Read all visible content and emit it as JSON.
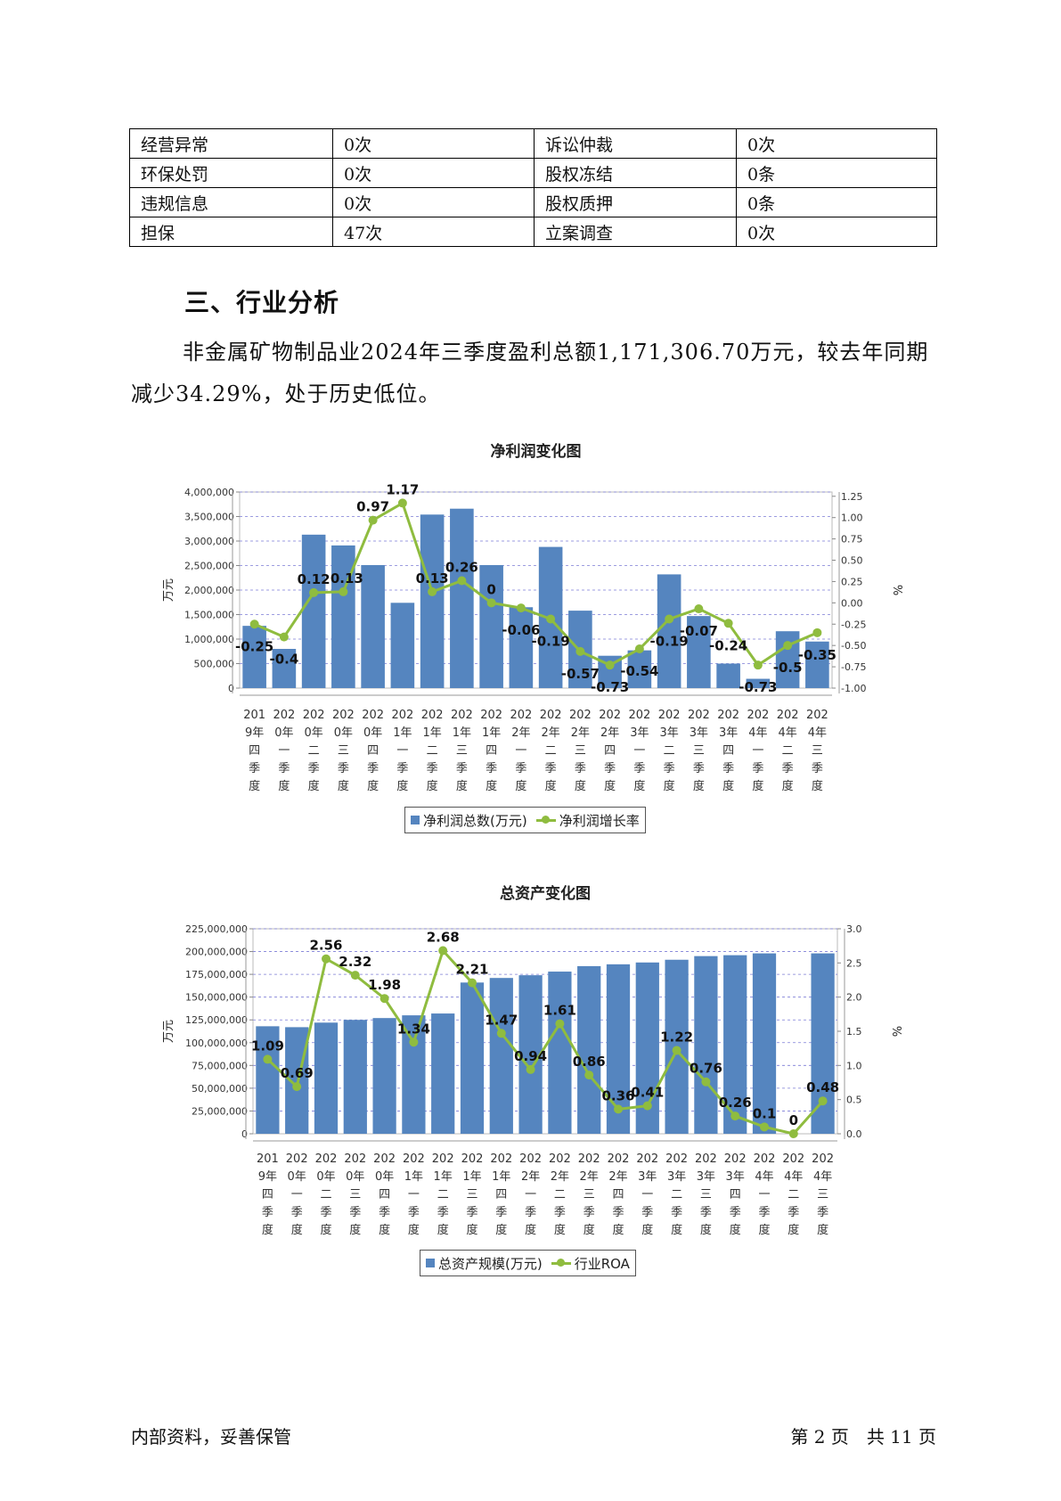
{
  "risk_table": [
    [
      "经营异常",
      "0次",
      "诉讼仲裁",
      "0次"
    ],
    [
      "环保处罚",
      "0次",
      "股权冻结",
      "0条"
    ],
    [
      "违规信息",
      "0次",
      "股权质押",
      "0条"
    ],
    [
      "担保",
      "47次",
      "立案调查",
      "0次"
    ]
  ],
  "section": {
    "heading": "三、行业分析",
    "paragraph": "非金属矿物制品业2024年三季度盈利总额1,171,306.70万元，较去年同期减少34.29%，处于历史低位。"
  },
  "chart_data": [
    {
      "type": "bar+line",
      "title": "净利润变化图",
      "categories": [
        "2019年四季度",
        "2020年一季度",
        "2020年二季度",
        "2020年三季度",
        "2020年四季度",
        "2021年一季度",
        "2021年二季度",
        "2021年三季度",
        "2021年四季度",
        "2022年一季度",
        "2022年二季度",
        "2022年三季度",
        "2022年四季度",
        "2023年一季度",
        "2023年二季度",
        "2023年三季度",
        "2023年四季度",
        "2024年一季度",
        "2024年二季度",
        "2024年三季度"
      ],
      "category_lines": [
        [
          "201",
          "9年",
          "四",
          "季",
          "度"
        ],
        [
          "202",
          "0年",
          "一",
          "季",
          "度"
        ],
        [
          "202",
          "0年",
          "二",
          "季",
          "度"
        ],
        [
          "202",
          "0年",
          "三",
          "季",
          "度"
        ],
        [
          "202",
          "0年",
          "四",
          "季",
          "度"
        ],
        [
          "202",
          "1年",
          "一",
          "季",
          "度"
        ],
        [
          "202",
          "1年",
          "二",
          "季",
          "度"
        ],
        [
          "202",
          "1年",
          "三",
          "季",
          "度"
        ],
        [
          "202",
          "1年",
          "四",
          "季",
          "度"
        ],
        [
          "202",
          "2年",
          "一",
          "季",
          "度"
        ],
        [
          "202",
          "2年",
          "二",
          "季",
          "度"
        ],
        [
          "202",
          "2年",
          "三",
          "季",
          "度"
        ],
        [
          "202",
          "2年",
          "四",
          "季",
          "度"
        ],
        [
          "202",
          "3年",
          "一",
          "季",
          "度"
        ],
        [
          "202",
          "3年",
          "二",
          "季",
          "度"
        ],
        [
          "202",
          "3年",
          "三",
          "季",
          "度"
        ],
        [
          "202",
          "3年",
          "四",
          "季",
          "度"
        ],
        [
          "202",
          "4年",
          "一",
          "季",
          "度"
        ],
        [
          "202",
          "4年",
          "二",
          "季",
          "度"
        ],
        [
          "202",
          "4年",
          "三",
          "季",
          "度"
        ]
      ],
      "series": [
        {
          "name": "净利润总数(万元)",
          "kind": "bar",
          "axis": "left",
          "values": [
            1270000,
            800000,
            3130000,
            2910000,
            2510000,
            1740000,
            3540000,
            3660000,
            2510000,
            1650000,
            2880000,
            1580000,
            660000,
            770000,
            2320000,
            1470000,
            500000,
            190000,
            1160000,
            950000
          ]
        },
        {
          "name": "净利润增长率",
          "kind": "line",
          "axis": "right",
          "values": [
            -0.25,
            -0.4,
            0.12,
            0.13,
            0.97,
            1.17,
            0.13,
            0.26,
            0,
            -0.06,
            -0.19,
            -0.57,
            -0.73,
            -0.54,
            -0.19,
            -0.07,
            -0.24,
            -0.73,
            -0.5,
            -0.35
          ]
        }
      ],
      "ylabel": "万元",
      "y2label": "%",
      "ylim": [
        0,
        4000000
      ],
      "yticks": [
        "0",
        "500,000",
        "1,000,000",
        "1,500,000",
        "2,000,000",
        "2,500,000",
        "3,000,000",
        "3,500,000",
        "4,000,000"
      ],
      "y2lim": [
        -1.0,
        1.3
      ],
      "y2ticks": [
        "-1.00",
        "-0.75",
        "-0.50",
        "-0.25",
        "0.00",
        "0.25",
        "0.50",
        "0.75",
        "1.00",
        "1.25"
      ],
      "grid": true,
      "legend": "bottom",
      "colors": {
        "bar": "#5585bf",
        "line": "#8fbc3f"
      }
    },
    {
      "type": "bar+line",
      "title": "总资产变化图",
      "categories": [
        "2019年四季度",
        "2020年一季度",
        "2020年二季度",
        "2020年三季度",
        "2020年四季度",
        "2021年一季度",
        "2021年二季度",
        "2021年三季度",
        "2021年四季度",
        "2022年一季度",
        "2022年二季度",
        "2022年三季度",
        "2022年四季度",
        "2023年一季度",
        "2023年二季度",
        "2023年三季度",
        "2023年四季度",
        "2024年一季度",
        "2024年二季度",
        "2024年三季度"
      ],
      "category_lines": [
        [
          "201",
          "9年",
          "四",
          "季",
          "度"
        ],
        [
          "202",
          "0年",
          "一",
          "季",
          "度"
        ],
        [
          "202",
          "0年",
          "二",
          "季",
          "度"
        ],
        [
          "202",
          "0年",
          "三",
          "季",
          "度"
        ],
        [
          "202",
          "0年",
          "四",
          "季",
          "度"
        ],
        [
          "202",
          "1年",
          "一",
          "季",
          "度"
        ],
        [
          "202",
          "1年",
          "二",
          "季",
          "度"
        ],
        [
          "202",
          "1年",
          "三",
          "季",
          "度"
        ],
        [
          "202",
          "1年",
          "四",
          "季",
          "度"
        ],
        [
          "202",
          "2年",
          "一",
          "季",
          "度"
        ],
        [
          "202",
          "2年",
          "二",
          "季",
          "度"
        ],
        [
          "202",
          "2年",
          "三",
          "季",
          "度"
        ],
        [
          "202",
          "2年",
          "四",
          "季",
          "度"
        ],
        [
          "202",
          "3年",
          "一",
          "季",
          "度"
        ],
        [
          "202",
          "3年",
          "二",
          "季",
          "度"
        ],
        [
          "202",
          "3年",
          "三",
          "季",
          "度"
        ],
        [
          "202",
          "3年",
          "四",
          "季",
          "度"
        ],
        [
          "202",
          "4年",
          "一",
          "季",
          "度"
        ],
        [
          "202",
          "4年",
          "二",
          "季",
          "度"
        ],
        [
          "202",
          "4年",
          "三",
          "季",
          "度"
        ]
      ],
      "series": [
        {
          "name": "总资产规模(万元)",
          "kind": "bar",
          "axis": "left",
          "values": [
            118000000,
            117000000,
            122000000,
            125000000,
            127000000,
            130000000,
            132000000,
            166000000,
            171000000,
            174000000,
            178000000,
            184000000,
            186000000,
            188000000,
            191000000,
            195000000,
            196000000,
            198000000,
            null,
            198000000
          ]
        },
        {
          "name": "行业ROA",
          "kind": "line",
          "axis": "right",
          "values": [
            1.09,
            0.69,
            2.56,
            2.32,
            1.98,
            1.34,
            2.68,
            2.21,
            1.47,
            0.94,
            1.61,
            0.86,
            0.36,
            0.41,
            1.22,
            0.76,
            0.26,
            0.1,
            0,
            0.48
          ]
        }
      ],
      "ylabel": "万元",
      "y2label": "%",
      "ylim": [
        0,
        225000000
      ],
      "yticks": [
        "0",
        "25,000,000",
        "50,000,000",
        "75,000,000",
        "100,000,000",
        "125,000,000",
        "150,000,000",
        "175,000,000",
        "200,000,000",
        "225,000,000"
      ],
      "y2lim": [
        0,
        3.0
      ],
      "y2ticks": [
        "0.0",
        "0.5",
        "1.0",
        "1.5",
        "2.0",
        "2.5",
        "3.0"
      ],
      "grid": true,
      "legend": "bottom",
      "colors": {
        "bar": "#5585bf",
        "line": "#8fbc3f"
      }
    }
  ],
  "footer": {
    "left": "内部资料，妥善保管",
    "right": "第 2 页　共 11 页"
  }
}
